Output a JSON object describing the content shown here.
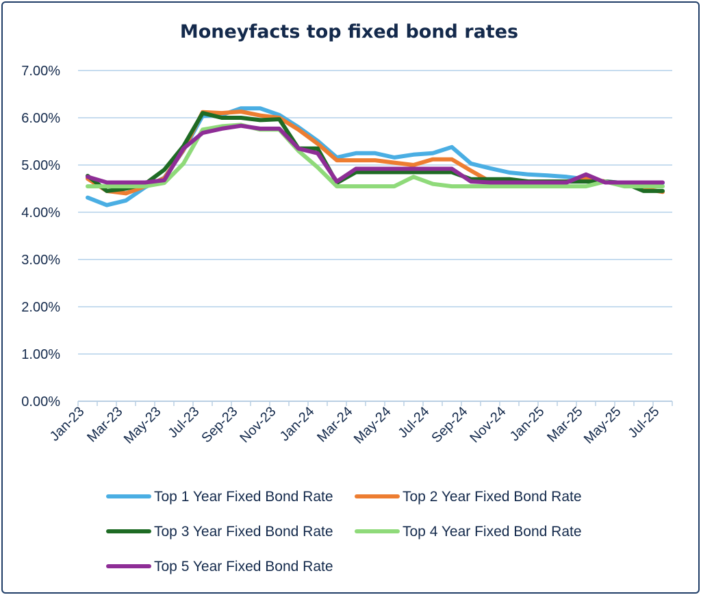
{
  "chart_data": {
    "type": "line",
    "title": "Moneyfacts top fixed bond rates",
    "xlabel": "",
    "ylabel": "",
    "ylim": [
      0,
      7
    ],
    "y_tick_values": [
      0,
      1,
      2,
      3,
      4,
      5,
      6,
      7
    ],
    "y_tick_labels": [
      "0.00%",
      "1.00%",
      "2.00%",
      "3.00%",
      "4.00%",
      "5.00%",
      "6.00%",
      "7.00%"
    ],
    "x": [
      "Jan-23",
      "Feb-23",
      "Mar-23",
      "Apr-23",
      "May-23",
      "Jun-23",
      "Jul-23",
      "Aug-23",
      "Sep-23",
      "Oct-23",
      "Nov-23",
      "Dec-23",
      "Jan-24",
      "Feb-24",
      "Mar-24",
      "Apr-24",
      "May-24",
      "Jun-24",
      "Jul-24",
      "Aug-24",
      "Sep-24",
      "Oct-24",
      "Nov-24",
      "Dec-24",
      "Jan-25",
      "Feb-25",
      "Mar-25",
      "Apr-25",
      "May-25",
      "Jun-25",
      "Jul-25"
    ],
    "x_tick_labels": [
      "Jan-23",
      "Mar-23",
      "May-23",
      "Jul-23",
      "Sep-23",
      "Nov-23",
      "Jan-24",
      "Mar-24",
      "May-24",
      "Jul-24",
      "Sep-24",
      "Nov-24",
      "Jan-25",
      "Mar-25",
      "May-25",
      "Jul-25"
    ],
    "grid": true,
    "legend_position": "bottom",
    "series": [
      {
        "name": "Top 1 Year Fixed Bond Rate",
        "color": "#4aaee3",
        "values": [
          4.31,
          4.15,
          4.25,
          4.53,
          4.73,
          5.31,
          6.04,
          6.06,
          6.2,
          6.2,
          6.06,
          5.8,
          5.51,
          5.16,
          5.25,
          5.25,
          5.16,
          5.22,
          5.25,
          5.38,
          5.03,
          4.93,
          4.84,
          4.8,
          4.78,
          4.75,
          4.7,
          4.65,
          4.62,
          4.62,
          4.62
        ]
      },
      {
        "name": "Top 2 Year Fixed Bond Rate",
        "color": "#ed7d31",
        "values": [
          4.71,
          4.45,
          4.4,
          4.55,
          4.72,
          5.32,
          6.12,
          6.1,
          6.13,
          6.05,
          6.0,
          5.75,
          5.45,
          5.1,
          5.1,
          5.1,
          5.05,
          5.0,
          5.12,
          5.12,
          4.88,
          4.65,
          4.65,
          4.65,
          4.65,
          4.65,
          4.72,
          4.65,
          4.6,
          4.5,
          4.43
        ]
      },
      {
        "name": "Top 3 Year Fixed Bond Rate",
        "color": "#1e6b24",
        "values": [
          4.77,
          4.45,
          4.5,
          4.6,
          4.9,
          5.4,
          6.1,
          6.0,
          6.0,
          5.95,
          5.97,
          5.35,
          5.35,
          4.62,
          4.85,
          4.85,
          4.85,
          4.85,
          4.85,
          4.85,
          4.7,
          4.7,
          4.7,
          4.65,
          4.65,
          4.65,
          4.65,
          4.65,
          4.62,
          4.45,
          4.45
        ]
      },
      {
        "name": "Top 4 Year Fixed Bond Rate",
        "color": "#8fda7a",
        "values": [
          4.55,
          4.55,
          4.55,
          4.55,
          4.62,
          5.03,
          5.75,
          5.82,
          5.85,
          5.75,
          5.75,
          5.3,
          4.95,
          4.55,
          4.55,
          4.55,
          4.55,
          4.75,
          4.6,
          4.55,
          4.55,
          4.55,
          4.55,
          4.55,
          4.55,
          4.55,
          4.55,
          4.65,
          4.55,
          4.55,
          4.55
        ]
      },
      {
        "name": "Top 5 Year Fixed Bond Rate",
        "color": "#8e2d96",
        "values": [
          4.75,
          4.63,
          4.63,
          4.63,
          4.68,
          5.35,
          5.68,
          5.77,
          5.83,
          5.77,
          5.77,
          5.35,
          5.25,
          4.65,
          4.92,
          4.92,
          4.92,
          4.92,
          4.92,
          4.92,
          4.65,
          4.63,
          4.63,
          4.63,
          4.63,
          4.63,
          4.8,
          4.63,
          4.63,
          4.63,
          4.63
        ]
      }
    ]
  }
}
